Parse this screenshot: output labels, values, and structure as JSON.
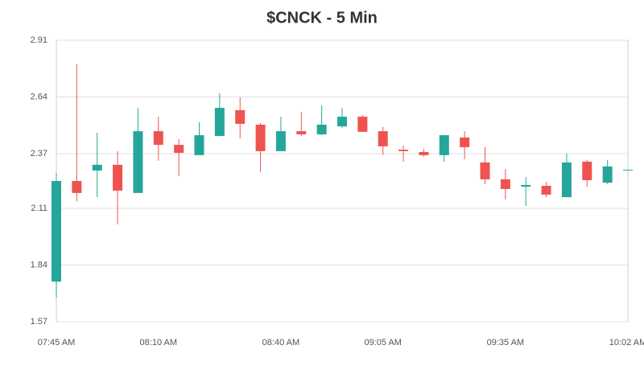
{
  "chart_data": {
    "type": "candlestick",
    "title": "$CNCK - 5 Min",
    "categories": [
      "07:45 AM",
      null,
      null,
      null,
      null,
      "08:10 AM",
      null,
      null,
      null,
      null,
      null,
      "08:40 AM",
      null,
      null,
      null,
      null,
      "09:05 AM",
      null,
      null,
      null,
      null,
      null,
      "09:35 AM",
      null,
      null,
      null,
      null,
      null,
      "10:02 AM"
    ],
    "open": [
      1.761,
      2.24,
      2.29,
      2.317,
      2.183,
      2.477,
      2.412,
      2.363,
      2.454,
      2.577,
      2.508,
      2.382,
      2.477,
      2.462,
      2.5,
      2.546,
      2.477,
      2.389,
      2.378,
      2.363,
      2.447,
      2.328,
      2.248,
      2.213,
      2.217,
      2.163,
      2.332,
      2.232,
      2.294
    ],
    "high": [
      2.278,
      2.795,
      2.47,
      2.382,
      2.588,
      2.546,
      2.439,
      2.519,
      2.657,
      2.638,
      2.516,
      2.546,
      2.569,
      2.6,
      2.588,
      2.554,
      2.497,
      2.408,
      2.393,
      2.458,
      2.477,
      2.401,
      2.297,
      2.259,
      2.236,
      2.37,
      2.34,
      2.34,
      2.294
    ],
    "low": [
      1.685,
      2.144,
      2.163,
      2.033,
      2.183,
      2.336,
      2.263,
      2.363,
      2.454,
      2.443,
      2.282,
      2.382,
      2.454,
      2.458,
      2.493,
      2.474,
      2.363,
      2.332,
      2.355,
      2.332,
      2.343,
      2.225,
      2.152,
      2.121,
      2.163,
      2.163,
      2.213,
      2.225,
      2.294
    ],
    "close": [
      2.24,
      2.183,
      2.317,
      2.194,
      2.477,
      2.412,
      2.374,
      2.458,
      2.588,
      2.512,
      2.382,
      2.477,
      2.462,
      2.508,
      2.546,
      2.474,
      2.405,
      2.382,
      2.363,
      2.458,
      2.401,
      2.248,
      2.202,
      2.221,
      2.175,
      2.328,
      2.244,
      2.309,
      2.294
    ],
    "up_color": "#26a69a",
    "down_color": "#ef5350",
    "ylim": [
      1.57,
      2.91
    ],
    "yticks": [
      1.57,
      1.84,
      2.11,
      2.37,
      2.64,
      2.91
    ],
    "grid": true
  }
}
